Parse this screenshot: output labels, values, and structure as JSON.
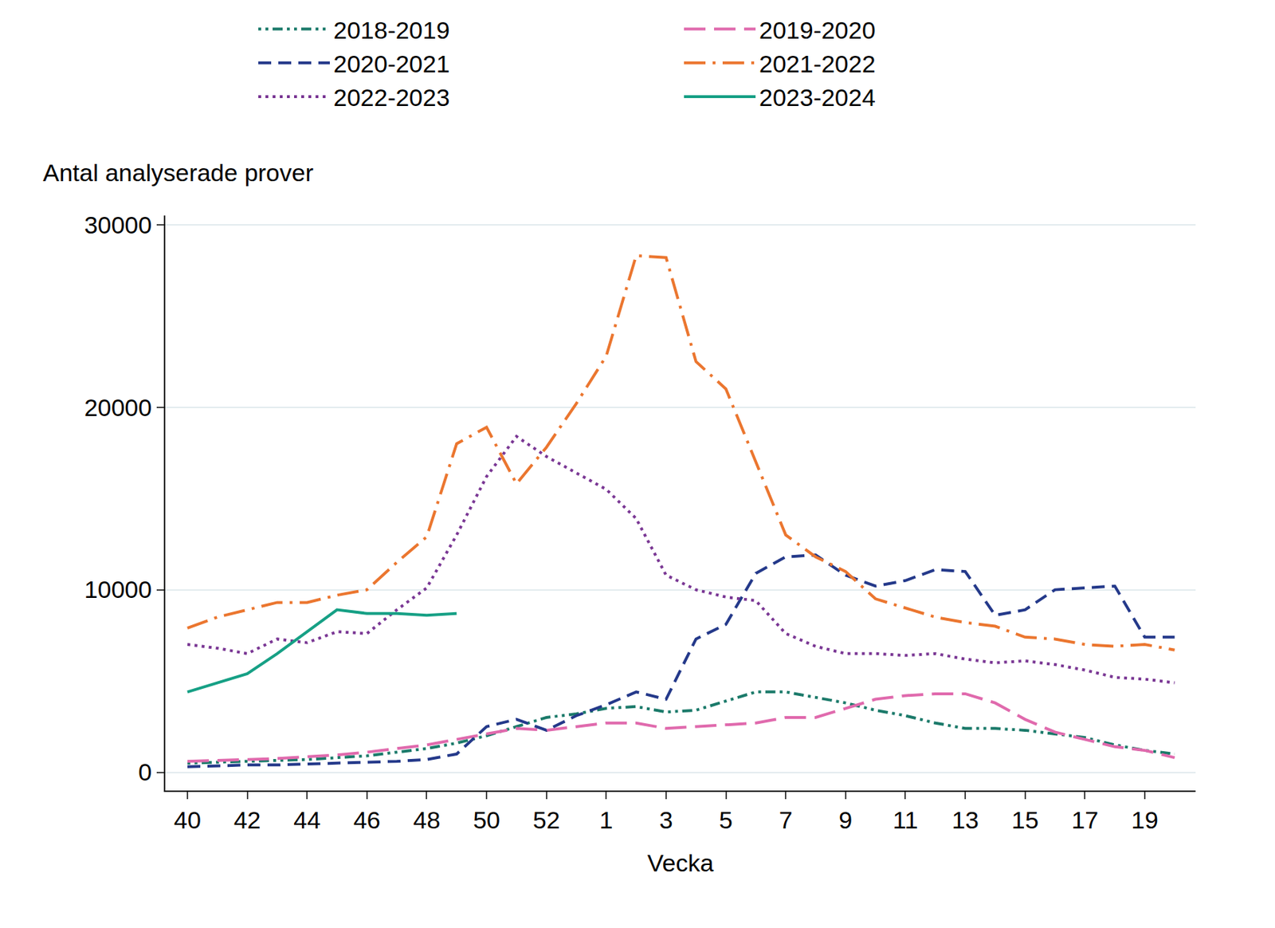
{
  "chart_data": {
    "type": "line",
    "y_label": "Antal analyserade prover",
    "x_label": "Vecka",
    "categories": [
      "40",
      null,
      "42",
      null,
      "44",
      null,
      "46",
      null,
      "48",
      null,
      "50",
      null,
      "52",
      null,
      "1",
      null,
      "3",
      null,
      "5",
      null,
      "7",
      null,
      "9",
      null,
      "11",
      null,
      "13",
      null,
      "15",
      null,
      "17",
      null,
      "19",
      null
    ],
    "series": [
      {
        "name": "2018-2019",
        "color": "#1b7a6a",
        "line_style": "dashdotdot",
        "values": [
          500,
          550,
          600,
          650,
          700,
          800,
          900,
          1100,
          1300,
          1600,
          2000,
          2500,
          3000,
          3200,
          3500,
          3600,
          3300,
          3400,
          3900,
          4400,
          4400,
          4100,
          3800,
          3400,
          3100,
          2700,
          2400,
          2400,
          2300,
          2100,
          1900,
          1500,
          1200,
          1000
        ]
      },
      {
        "name": "2019-2020",
        "color": "#e06aad",
        "line_style": "longdash",
        "values": [
          600,
          650,
          700,
          750,
          850,
          950,
          1100,
          1300,
          1500,
          1800,
          2100,
          2400,
          2300,
          2500,
          2700,
          2700,
          2400,
          2500,
          2600,
          2700,
          3000,
          3000,
          3500,
          4000,
          4200,
          4300,
          4300,
          3800,
          2900,
          2200,
          1800,
          1400,
          1200,
          800
        ]
      },
      {
        "name": "2020-2021",
        "color": "#24398a",
        "line_style": "dash",
        "values": [
          300,
          350,
          400,
          400,
          450,
          500,
          550,
          600,
          700,
          1000,
          2500,
          2900,
          2300,
          3100,
          3700,
          4400,
          4000,
          7300,
          8100,
          10900,
          11800,
          11900,
          10800,
          10200,
          10500,
          11100,
          11000,
          8600,
          8900,
          10000,
          10100,
          10200,
          7400,
          7400
        ]
      },
      {
        "name": "2021-2022",
        "color": "#eb762f",
        "line_style": "longdashdot",
        "values": [
          7900,
          8500,
          8900,
          9300,
          9300,
          9700,
          10000,
          11500,
          12900,
          18000,
          18900,
          15800,
          17800,
          20200,
          22800,
          28300,
          28200,
          22500,
          21000,
          17000,
          13000,
          11800,
          11000,
          9500,
          9000,
          8500,
          8200,
          8000,
          7400,
          7300,
          7000,
          6900,
          7000,
          6700
        ]
      },
      {
        "name": "2022-2023",
        "color": "#7a3794",
        "line_style": "dot",
        "values": [
          7000,
          6800,
          6500,
          7300,
          7100,
          7700,
          7600,
          8900,
          10100,
          13000,
          16200,
          18400,
          17300,
          16400,
          15500,
          13900,
          10800,
          10000,
          9600,
          9400,
          7600,
          6900,
          6500,
          6500,
          6400,
          6500,
          6200,
          6000,
          6100,
          5900,
          5600,
          5200,
          5100,
          4900
        ]
      },
      {
        "name": "2023-2024",
        "color": "#16a085",
        "line_style": "solid",
        "values": [
          4400,
          4900,
          5400,
          6500,
          7700,
          8900,
          8700,
          8700,
          8600,
          8700,
          null,
          null,
          null,
          null,
          null,
          null,
          null,
          null,
          null,
          null,
          null,
          null,
          null,
          null,
          null,
          null,
          null,
          null,
          null,
          null,
          null,
          null,
          null,
          null
        ]
      }
    ],
    "ylim": [
      -1000,
      30500
    ],
    "yticks": [
      0,
      10000,
      20000,
      30000
    ],
    "grid": true,
    "legend": "top"
  }
}
